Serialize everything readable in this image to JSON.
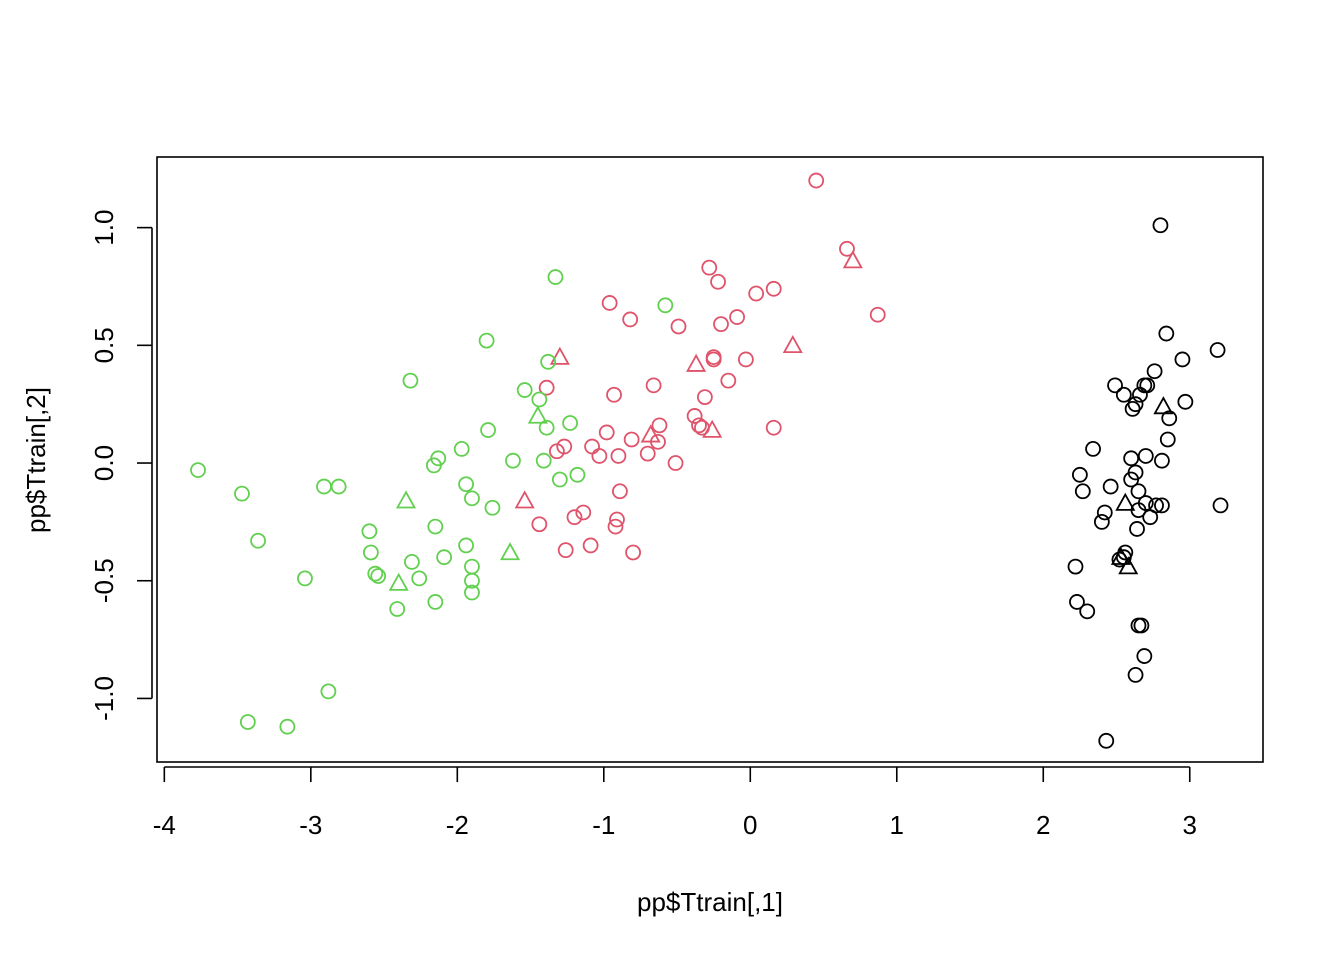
{
  "chart_data": {
    "type": "scatter",
    "title": "",
    "xlabel": "pp$Ttrain[,1]",
    "ylabel": "pp$Ttrain[,2]",
    "xlim": [
      -4.05,
      3.5
    ],
    "ylim": [
      -1.27,
      1.3
    ],
    "x_ticks": [
      -4,
      -3,
      -2,
      -1,
      0,
      1,
      2,
      3
    ],
    "y_ticks": [
      -1.0,
      -0.5,
      0.0,
      0.5,
      1.0
    ],
    "x_tick_labels": [
      "-4",
      "-3",
      "-2",
      "-1",
      "0",
      "1",
      "2",
      "3"
    ],
    "y_tick_labels": [
      "-1.0",
      "-0.5",
      "0.0",
      "0.5",
      "1.0"
    ],
    "grid": false,
    "legend": "none",
    "colors": {
      "black": "#000000",
      "red": "#DF536B",
      "green": "#61D04F"
    },
    "series": [
      {
        "color": "black",
        "marker": "circle",
        "points": [
          [
            2.8,
            1.01
          ],
          [
            2.84,
            0.55
          ],
          [
            3.19,
            0.48
          ],
          [
            2.95,
            0.44
          ],
          [
            2.76,
            0.39
          ],
          [
            2.49,
            0.33
          ],
          [
            2.69,
            0.33
          ],
          [
            2.71,
            0.33
          ],
          [
            2.55,
            0.29
          ],
          [
            2.66,
            0.29
          ],
          [
            2.63,
            0.25
          ],
          [
            2.61,
            0.23
          ],
          [
            2.97,
            0.26
          ],
          [
            2.86,
            0.19
          ],
          [
            2.85,
            0.1
          ],
          [
            2.34,
            0.06
          ],
          [
            2.6,
            0.02
          ],
          [
            2.7,
            0.03
          ],
          [
            2.81,
            0.01
          ],
          [
            2.63,
            -0.04
          ],
          [
            2.25,
            -0.05
          ],
          [
            2.6,
            -0.07
          ],
          [
            2.46,
            -0.1
          ],
          [
            2.27,
            -0.12
          ],
          [
            2.65,
            -0.12
          ],
          [
            2.7,
            -0.17
          ],
          [
            2.77,
            -0.18
          ],
          [
            2.81,
            -0.18
          ],
          [
            3.21,
            -0.18
          ],
          [
            2.42,
            -0.21
          ],
          [
            2.65,
            -0.2
          ],
          [
            2.73,
            -0.23
          ],
          [
            2.4,
            -0.25
          ],
          [
            2.64,
            -0.28
          ],
          [
            2.56,
            -0.38
          ],
          [
            2.55,
            -0.4
          ],
          [
            2.52,
            -0.41
          ],
          [
            2.22,
            -0.44
          ],
          [
            2.23,
            -0.59
          ],
          [
            2.3,
            -0.63
          ],
          [
            2.65,
            -0.69
          ],
          [
            2.67,
            -0.69
          ],
          [
            2.69,
            -0.82
          ],
          [
            2.63,
            -0.9
          ],
          [
            2.43,
            -1.18
          ]
        ]
      },
      {
        "color": "black",
        "marker": "triangle",
        "points": [
          [
            2.82,
            0.24
          ],
          [
            2.56,
            -0.17
          ],
          [
            2.53,
            -0.4
          ],
          [
            2.58,
            -0.44
          ]
        ]
      },
      {
        "color": "red",
        "marker": "circle",
        "points": [
          [
            0.45,
            1.2
          ],
          [
            0.66,
            0.91
          ],
          [
            -0.28,
            0.83
          ],
          [
            -0.22,
            0.77
          ],
          [
            0.16,
            0.74
          ],
          [
            0.04,
            0.72
          ],
          [
            -0.96,
            0.68
          ],
          [
            0.87,
            0.63
          ],
          [
            -0.82,
            0.61
          ],
          [
            -0.09,
            0.62
          ],
          [
            -0.2,
            0.59
          ],
          [
            -0.49,
            0.58
          ],
          [
            -0.25,
            0.45
          ],
          [
            -0.25,
            0.44
          ],
          [
            -0.03,
            0.44
          ],
          [
            -0.15,
            0.35
          ],
          [
            -0.66,
            0.33
          ],
          [
            -1.39,
            0.32
          ],
          [
            -0.93,
            0.29
          ],
          [
            -0.31,
            0.28
          ],
          [
            -0.38,
            0.2
          ],
          [
            -0.35,
            0.16
          ],
          [
            -0.33,
            0.15
          ],
          [
            0.16,
            0.15
          ],
          [
            -0.62,
            0.16
          ],
          [
            -0.98,
            0.13
          ],
          [
            -0.81,
            0.1
          ],
          [
            -0.63,
            0.09
          ],
          [
            -1.08,
            0.07
          ],
          [
            -1.27,
            0.07
          ],
          [
            -1.32,
            0.05
          ],
          [
            -0.7,
            0.04
          ],
          [
            -1.03,
            0.03
          ],
          [
            -0.9,
            0.03
          ],
          [
            -0.51,
            0.0
          ],
          [
            -0.89,
            -0.12
          ],
          [
            -1.14,
            -0.21
          ],
          [
            -1.2,
            -0.23
          ],
          [
            -0.91,
            -0.24
          ],
          [
            -1.44,
            -0.26
          ],
          [
            -0.92,
            -0.27
          ],
          [
            -1.09,
            -0.35
          ],
          [
            -1.26,
            -0.37
          ],
          [
            -0.8,
            -0.38
          ]
        ]
      },
      {
        "color": "red",
        "marker": "triangle",
        "points": [
          [
            0.7,
            0.86
          ],
          [
            0.29,
            0.5
          ],
          [
            -1.3,
            0.45
          ],
          [
            -0.37,
            0.42
          ],
          [
            -0.26,
            0.14
          ],
          [
            -0.68,
            0.12
          ],
          [
            -1.54,
            -0.16
          ]
        ]
      },
      {
        "color": "green",
        "marker": "circle",
        "points": [
          [
            -1.33,
            0.79
          ],
          [
            -0.58,
            0.67
          ],
          [
            -1.8,
            0.52
          ],
          [
            -1.38,
            0.43
          ],
          [
            -2.32,
            0.35
          ],
          [
            -1.54,
            0.31
          ],
          [
            -1.44,
            0.27
          ],
          [
            -1.23,
            0.17
          ],
          [
            -1.39,
            0.15
          ],
          [
            -1.79,
            0.14
          ],
          [
            -1.97,
            0.06
          ],
          [
            -2.13,
            0.02
          ],
          [
            -1.62,
            0.01
          ],
          [
            -1.41,
            0.01
          ],
          [
            -2.16,
            -0.01
          ],
          [
            -3.77,
            -0.03
          ],
          [
            -1.18,
            -0.05
          ],
          [
            -1.3,
            -0.07
          ],
          [
            -1.94,
            -0.09
          ],
          [
            -2.91,
            -0.1
          ],
          [
            -2.81,
            -0.1
          ],
          [
            -3.47,
            -0.13
          ],
          [
            -1.9,
            -0.15
          ],
          [
            -1.76,
            -0.19
          ],
          [
            -2.15,
            -0.27
          ],
          [
            -2.6,
            -0.29
          ],
          [
            -3.36,
            -0.33
          ],
          [
            -1.94,
            -0.35
          ],
          [
            -2.59,
            -0.38
          ],
          [
            -2.09,
            -0.4
          ],
          [
            -2.31,
            -0.42
          ],
          [
            -1.9,
            -0.44
          ],
          [
            -2.56,
            -0.47
          ],
          [
            -2.54,
            -0.48
          ],
          [
            -2.26,
            -0.49
          ],
          [
            -3.04,
            -0.49
          ],
          [
            -1.9,
            -0.5
          ],
          [
            -1.9,
            -0.55
          ],
          [
            -2.15,
            -0.59
          ],
          [
            -2.41,
            -0.62
          ],
          [
            -2.88,
            -0.97
          ],
          [
            -3.43,
            -1.1
          ],
          [
            -3.16,
            -1.12
          ]
        ]
      },
      {
        "color": "green",
        "marker": "triangle",
        "points": [
          [
            -1.45,
            0.2
          ],
          [
            -2.35,
            -0.16
          ],
          [
            -1.64,
            -0.38
          ],
          [
            -2.4,
            -0.51
          ]
        ]
      }
    ]
  }
}
